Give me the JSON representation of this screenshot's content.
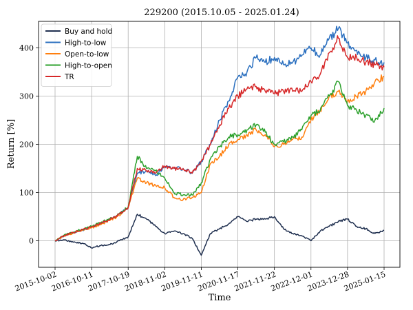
{
  "chart_data": {
    "type": "line",
    "title": "229200 (2015.10.05 - 2025.01.24)",
    "xlabel": "Time",
    "ylabel": "Return [%]",
    "ylim": [
      -55,
      455
    ],
    "y_ticks": [
      0,
      100,
      200,
      300,
      400
    ],
    "x_ticks": [
      "2015-10-02",
      "2016-10-11",
      "2017-10-19",
      "2018-11-02",
      "2019-11-11",
      "2020-11-17",
      "2021-11-22",
      "2022-12-01",
      "2023-12-28",
      "2025-01-15"
    ],
    "x": [
      0,
      0.25,
      0.5,
      0.75,
      1,
      1.25,
      1.5,
      1.75,
      2,
      2.25,
      2.5,
      2.75,
      3,
      3.25,
      3.5,
      3.75,
      4,
      4.25,
      4.5,
      4.75,
      5,
      5.25,
      5.5,
      5.75,
      6,
      6.25,
      6.5,
      6.75,
      7,
      7.25,
      7.5,
      7.75,
      8,
      8.25,
      8.5,
      8.75,
      9
    ],
    "grid": true,
    "legend_position": "top-left",
    "series": [
      {
        "name": "Buy and hold",
        "color": "#1f2f4f",
        "values": [
          0,
          2,
          -3,
          -5,
          -15,
          -10,
          -8,
          0,
          8,
          55,
          45,
          30,
          15,
          20,
          15,
          5,
          -30,
          15,
          25,
          35,
          50,
          40,
          45,
          45,
          50,
          25,
          15,
          10,
          0,
          20,
          30,
          40,
          45,
          30,
          25,
          15,
          22
        ]
      },
      {
        "name": "High-to-low",
        "color": "#2a6fbf",
        "values": [
          0,
          10,
          17,
          22,
          28,
          35,
          45,
          55,
          70,
          140,
          145,
          135,
          155,
          150,
          150,
          140,
          165,
          200,
          250,
          290,
          340,
          350,
          380,
          370,
          380,
          365,
          370,
          385,
          400,
          385,
          420,
          440,
          410,
          395,
          380,
          375,
          370
        ]
      },
      {
        "name": "Open-to-low",
        "color": "#ff7f0e",
        "values": [
          0,
          10,
          16,
          22,
          27,
          33,
          42,
          52,
          70,
          130,
          120,
          115,
          110,
          90,
          85,
          90,
          100,
          160,
          175,
          200,
          210,
          220,
          230,
          220,
          195,
          200,
          210,
          215,
          250,
          270,
          300,
          310,
          290,
          300,
          310,
          330,
          340
        ]
      },
      {
        "name": "High-to-open",
        "color": "#2ca02c",
        "values": [
          0,
          12,
          18,
          24,
          30,
          38,
          46,
          55,
          70,
          175,
          150,
          145,
          130,
          100,
          95,
          95,
          120,
          170,
          195,
          215,
          220,
          230,
          240,
          225,
          200,
          205,
          215,
          230,
          260,
          270,
          300,
          330,
          280,
          270,
          260,
          250,
          275
        ]
      },
      {
        "name": "TR",
        "color": "#d62728",
        "values": [
          0,
          11,
          17,
          23,
          29,
          36,
          44,
          55,
          68,
          150,
          145,
          140,
          155,
          150,
          150,
          140,
          165,
          200,
          240,
          275,
          300,
          315,
          320,
          310,
          305,
          310,
          310,
          310,
          330,
          345,
          390,
          420,
          380,
          380,
          370,
          365,
          360
        ]
      }
    ]
  }
}
